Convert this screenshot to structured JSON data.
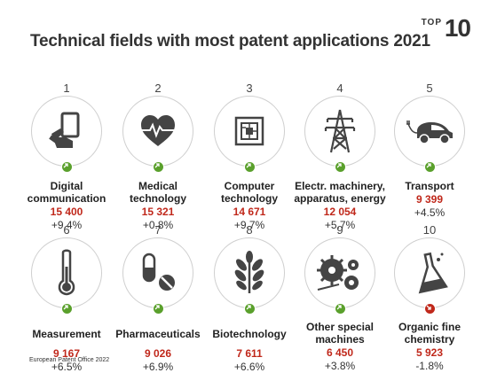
{
  "title": "Technical fields with most patent applications 2021",
  "badge": {
    "top": "TOP",
    "number": "10"
  },
  "fields": [
    {
      "rank": "1",
      "name": "Digital communication",
      "applications": "15 400",
      "change": "+9.4%",
      "trend": "up",
      "icon": "tablet-hand-icon"
    },
    {
      "rank": "2",
      "name": "Medical technology",
      "applications": "15 321",
      "change": "+0.8%",
      "trend": "up",
      "icon": "heart-pulse-icon"
    },
    {
      "rank": "3",
      "name": "Computer technology",
      "applications": "14 671",
      "change": "+9.7%",
      "trend": "up",
      "icon": "chip-icon"
    },
    {
      "rank": "4",
      "name": "Electr. machinery, apparatus, energy",
      "applications": "12 054",
      "change": "+5.7%",
      "trend": "up",
      "icon": "power-pylon-icon"
    },
    {
      "rank": "5",
      "name": "Transport",
      "applications": "9 399",
      "change": "+4.5%",
      "trend": "up",
      "icon": "electric-car-icon"
    },
    {
      "rank": "6",
      "name": "Measurement",
      "applications": "9 167",
      "change": "+6.5%",
      "trend": "up",
      "icon": "thermometer-icon"
    },
    {
      "rank": "7",
      "name": "Pharmaceuticals",
      "applications": "9 026",
      "change": "+6.9%",
      "trend": "up",
      "icon": "pills-icon"
    },
    {
      "rank": "8",
      "name": "Biotechnology",
      "applications": "7 611",
      "change": "+6.6%",
      "trend": "up",
      "icon": "plant-icon"
    },
    {
      "rank": "9",
      "name": "Other special machines",
      "applications": "6 450",
      "change": "+3.8%",
      "trend": "up",
      "icon": "saw-gears-icon"
    },
    {
      "rank": "10",
      "name": "Organic fine chemistry",
      "applications": "5 923",
      "change": "-1.8%",
      "trend": "down",
      "icon": "flask-icon"
    }
  ],
  "colors": {
    "count": "#c0281b",
    "up": "#5aa02c",
    "down": "#c0281b",
    "icon": "#444444"
  },
  "footer": "European Patent Office 2022"
}
